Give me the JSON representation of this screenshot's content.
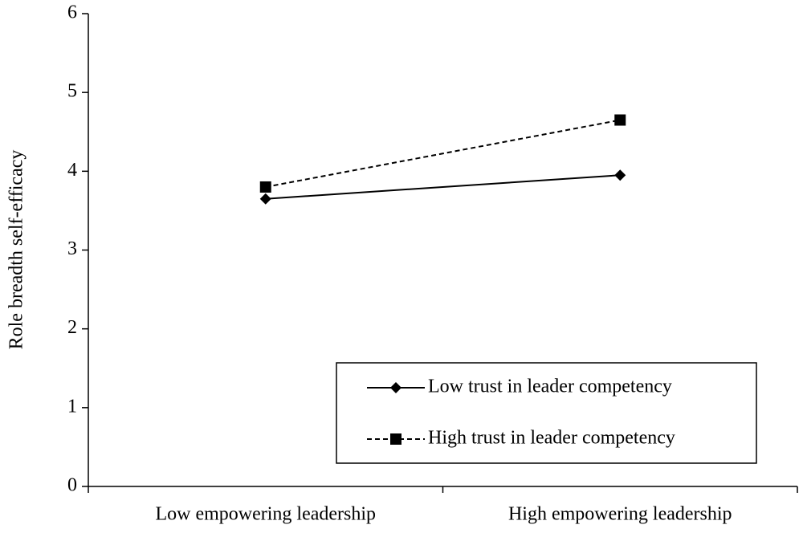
{
  "chart_data": {
    "type": "line",
    "y_label": "Role breadth self-efficacy",
    "categories": [
      "Low empowering leadership",
      "High empowering leadership"
    ],
    "series": [
      {
        "name": "Low trust in leader competency",
        "color": "#000000",
        "line_style": "solid",
        "marker": "diamond",
        "values": [
          3.65,
          3.95
        ]
      },
      {
        "name": "High trust in leader competency",
        "color": "#000000",
        "line_style": "dashed",
        "marker": "square",
        "values": [
          3.8,
          4.65
        ]
      }
    ],
    "ylim": [
      0,
      6
    ],
    "yticks": [
      0,
      1,
      2,
      3,
      4,
      5,
      6
    ],
    "grid": false,
    "legend": "lower right"
  }
}
